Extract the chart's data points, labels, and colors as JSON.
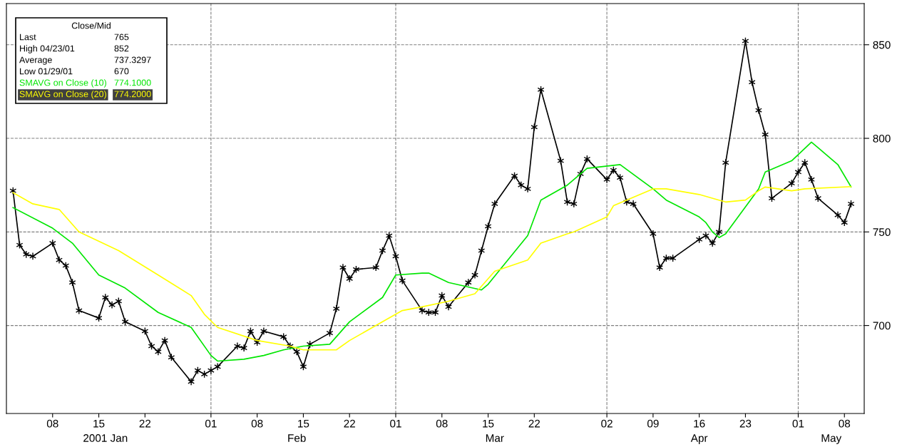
{
  "chart_data": {
    "type": "line",
    "legend_title": "Close/Mid",
    "legend": "top left",
    "annotations": [
      "Last",
      "765",
      "High 04/23/01",
      "852",
      "Average",
      "737.3297",
      "Low 01/29/01",
      "670",
      "774.1000",
      "774.2000"
    ],
    "series": [
      {
        "color": "#000000",
        "marker": "cross",
        "x": [
          "2001-01-02",
          "2001-01-03",
          "2001-01-04",
          "2001-01-05",
          "2001-01-08",
          "2001-01-09",
          "2001-01-10",
          "2001-01-11",
          "2001-01-12",
          "2001-01-15",
          "2001-01-16",
          "2001-01-17",
          "2001-01-18",
          "2001-01-19",
          "2001-01-22",
          "2001-01-23",
          "2001-01-24",
          "2001-01-25",
          "2001-01-26",
          "2001-01-29",
          "2001-01-30",
          "2001-01-31",
          "2001-02-01",
          "2001-02-02",
          "2001-02-05",
          "2001-02-06",
          "2001-02-07",
          "2001-02-08",
          "2001-02-09",
          "2001-02-12",
          "2001-02-13",
          "2001-02-14",
          "2001-02-15",
          "2001-02-16",
          "2001-02-19",
          "2001-02-20",
          "2001-02-21",
          "2001-02-22",
          "2001-02-23",
          "2001-02-26",
          "2001-02-27",
          "2001-02-28",
          "2001-03-01",
          "2001-03-02",
          "2001-03-05",
          "2001-03-06",
          "2001-03-07",
          "2001-03-08",
          "2001-03-09",
          "2001-03-12",
          "2001-03-13",
          "2001-03-14",
          "2001-03-15",
          "2001-03-16",
          "2001-03-19",
          "2001-03-20",
          "2001-03-21",
          "2001-03-22",
          "2001-03-23",
          "2001-03-26",
          "2001-03-27",
          "2001-03-28",
          "2001-03-29",
          "2001-03-30",
          "2001-04-02",
          "2001-04-03",
          "2001-04-04",
          "2001-04-05",
          "2001-04-06",
          "2001-04-09",
          "2001-04-10",
          "2001-04-11",
          "2001-04-12",
          "2001-04-16",
          "2001-04-17",
          "2001-04-18",
          "2001-04-19",
          "2001-04-20",
          "2001-04-23",
          "2001-04-24",
          "2001-04-25",
          "2001-04-26",
          "2001-04-27",
          "2001-04-30",
          "2001-05-01",
          "2001-05-02",
          "2001-05-03",
          "2001-05-04",
          "2001-05-07",
          "2001-05-08",
          "2001-05-09"
        ],
        "values": [
          772,
          743,
          738,
          737,
          744,
          735,
          732,
          723,
          708,
          704,
          715,
          711,
          713,
          702,
          697,
          689,
          686,
          692,
          683,
          670,
          676,
          674,
          676,
          678,
          689,
          688,
          697,
          691,
          697,
          694,
          689,
          686,
          678,
          690,
          696,
          709,
          731,
          725,
          730,
          731,
          740,
          748,
          737,
          724,
          708,
          707,
          707,
          716,
          710,
          723,
          727,
          740,
          753,
          765,
          780,
          775,
          773,
          806,
          826,
          788,
          766,
          765,
          781,
          789,
          778,
          783,
          779,
          766,
          765,
          749,
          731,
          736,
          736,
          746,
          748,
          744,
          750,
          787,
          852,
          830,
          815,
          802,
          768,
          776,
          782,
          787,
          778,
          768,
          759,
          755,
          765
        ]
      },
      {
        "name": "SMAVG on Close (10)",
        "color": "#00e600",
        "x": [
          "2001-01-02",
          "2001-01-08",
          "2001-01-11",
          "2001-01-15",
          "2001-01-19",
          "2001-01-24",
          "2001-01-29",
          "2001-02-01",
          "2001-02-02",
          "2001-02-06",
          "2001-02-09",
          "2001-02-12",
          "2001-02-15",
          "2001-02-19",
          "2001-02-22",
          "2001-02-27",
          "2001-03-01",
          "2001-03-05",
          "2001-03-06",
          "2001-03-09",
          "2001-03-14",
          "2001-03-15",
          "2001-03-21",
          "2001-03-23",
          "2001-03-27",
          "2001-03-29",
          "2001-03-30",
          "2001-04-04",
          "2001-04-09",
          "2001-04-11",
          "2001-04-16",
          "2001-04-17",
          "2001-04-18",
          "2001-04-19",
          "2001-04-20",
          "2001-04-25",
          "2001-04-26",
          "2001-04-30",
          "2001-05-03",
          "2001-05-04",
          "2001-05-07",
          "2001-05-09"
        ],
        "values": [
          763,
          752,
          744,
          727,
          720,
          707,
          699,
          684,
          681,
          682,
          684,
          687,
          689,
          690,
          702,
          715,
          727,
          728,
          728,
          723,
          719,
          722,
          748,
          767,
          775,
          781,
          784,
          786,
          773,
          767,
          758,
          755,
          750,
          747,
          749,
          773,
          782,
          788,
          798,
          795,
          786,
          774.1
        ]
      },
      {
        "name": "SMAVG on Close (20)",
        "color": "#ffff00",
        "x": [
          "2001-01-02",
          "2001-01-05",
          "2001-01-09",
          "2001-01-12",
          "2001-01-18",
          "2001-01-24",
          "2001-01-29",
          "2001-01-31",
          "2001-02-02",
          "2001-02-08",
          "2001-02-13",
          "2001-02-15",
          "2001-02-20",
          "2001-02-22",
          "2001-02-27",
          "2001-03-02",
          "2001-03-05",
          "2001-03-09",
          "2001-03-13",
          "2001-03-16",
          "2001-03-21",
          "2001-03-23",
          "2001-03-27",
          "2001-03-28",
          "2001-04-02",
          "2001-04-03",
          "2001-04-09",
          "2001-04-11",
          "2001-04-16",
          "2001-04-19",
          "2001-04-20",
          "2001-04-23",
          "2001-04-25",
          "2001-04-26",
          "2001-04-30",
          "2001-05-02",
          "2001-05-09"
        ],
        "values": [
          771,
          765,
          762,
          750,
          740,
          727,
          716,
          706,
          699,
          692,
          689,
          687,
          687,
          692,
          702,
          708,
          710,
          713,
          717,
          729,
          735,
          744,
          749,
          750,
          758,
          764,
          773,
          773,
          770,
          767,
          766,
          767,
          772,
          774,
          772,
          773,
          774.2
        ]
      }
    ],
    "xlim": [
      "2001-01-01",
      "2001-05-11"
    ],
    "x2lim": [
      "2001-01-01",
      "2001-05-11"
    ],
    "xticks": [
      {
        "value": "2001-01-08",
        "label": "08"
      },
      {
        "value": "2001-01-15",
        "label": "15"
      },
      {
        "value": "2001-01-22",
        "label": "22"
      },
      {
        "value": "2001-02-01",
        "label": "01"
      },
      {
        "value": "2001-02-08",
        "label": "08"
      },
      {
        "value": "2001-02-15",
        "label": "15"
      },
      {
        "value": "2001-02-22",
        "label": "22"
      },
      {
        "value": "2001-03-01",
        "label": "01"
      },
      {
        "value": "2001-03-08",
        "label": "08"
      },
      {
        "value": "2001-03-15",
        "label": "15"
      },
      {
        "value": "2001-03-22",
        "label": "22"
      },
      {
        "value": "2001-04-02",
        "label": "02"
      },
      {
        "value": "2001-04-09",
        "label": "09"
      },
      {
        "value": "2001-04-16",
        "label": "16"
      },
      {
        "value": "2001-04-23",
        "label": "23"
      },
      {
        "value": "2001-05-01",
        "label": "01"
      },
      {
        "value": "2001-05-08",
        "label": "08"
      }
    ],
    "x2ticks": [
      {
        "value": "2001-01-16",
        "label": "2001 Jan"
      },
      {
        "value": "2001-02-14",
        "label": "Feb"
      },
      {
        "value": "2001-03-16",
        "label": "Mar"
      },
      {
        "value": "2001-04-16",
        "label": "Apr"
      },
      {
        "value": "2001-05-06",
        "label": "May"
      }
    ],
    "ylim": [
      653,
      872
    ],
    "yticks": [
      700,
      750,
      800,
      850
    ],
    "grid": "y",
    "ref_lines": [
      {
        "axis": "x",
        "value": "2001-02-01",
        "color": "#808080",
        "line_style": "dashed"
      },
      {
        "axis": "x",
        "value": "2001-03-01",
        "color": "#808080",
        "line_style": "dashed"
      },
      {
        "axis": "x",
        "value": "2001-04-02",
        "color": "#808080",
        "line_style": "dashed"
      },
      {
        "axis": "x",
        "value": "2001-05-01",
        "color": "#808080",
        "line_style": "dashed"
      }
    ]
  }
}
